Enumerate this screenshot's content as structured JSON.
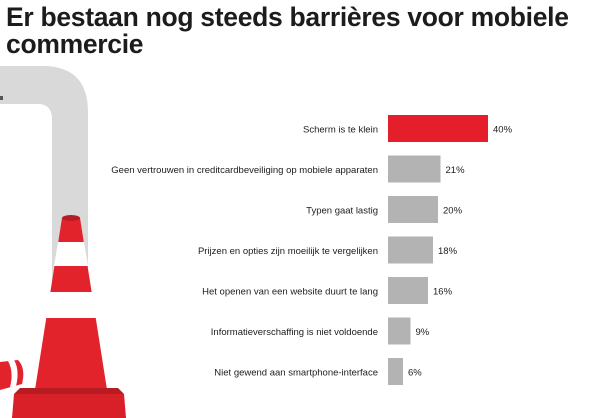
{
  "title": "Er bestaan nog steeds barrières voor mobiele commercie",
  "colors": {
    "highlight_bar": "#e41e2b",
    "default_bar": "#b3b3b3",
    "text": "#1c1c1c",
    "pipe": "#d9d9d9",
    "cone_red": "#e3232c",
    "cone_white": "#ffffff"
  },
  "illustration": {
    "name": "traffic-cone-and-pipe"
  },
  "chart_data": {
    "type": "bar",
    "orientation": "horizontal",
    "title": "",
    "xlabel": "",
    "ylabel": "",
    "xlim": [
      0,
      40
    ],
    "grid": false,
    "categories": [
      "Scherm is te klein",
      "Geen vertrouwen in creditcardbeveiliging op mobiele apparaten",
      "Typen gaat lastig",
      "Prijzen en opties zijn moeilijk te vergelijken",
      "Het openen van een website duurt te lang",
      "Informatieverschaffing is niet voldoende",
      "Niet gewend aan smartphone-interface"
    ],
    "values": [
      40,
      21,
      20,
      18,
      16,
      9,
      6
    ],
    "value_labels": [
      "40%",
      "21%",
      "20%",
      "18%",
      "16%",
      "9%",
      "6%"
    ],
    "highlighted_index": 0
  }
}
